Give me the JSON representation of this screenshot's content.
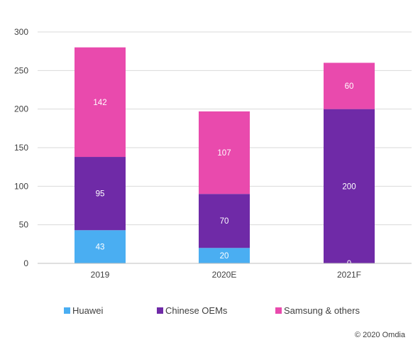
{
  "chart_data": {
    "type": "bar",
    "stacked": true,
    "categories": [
      "2019",
      "2020E",
      "2021F"
    ],
    "series": [
      {
        "name": "Huawei",
        "values": [
          43,
          20,
          0
        ],
        "color": "#4aaef2",
        "labels": [
          "43",
          "20",
          "0"
        ]
      },
      {
        "name": "Chinese OEMs",
        "values": [
          95,
          70,
          200
        ],
        "color": "#6f2aa7",
        "labels": [
          "95",
          "70",
          "200"
        ]
      },
      {
        "name": "Samsung & others",
        "values": [
          142,
          107,
          60
        ],
        "color": "#e94aad",
        "labels": [
          "142",
          "107",
          "60"
        ]
      }
    ],
    "yticks": [
      "0",
      "50",
      "100",
      "150",
      "200",
      "250",
      "300"
    ],
    "ylim": [
      0,
      300
    ],
    "grid": true,
    "legend_position": "bottom",
    "title": "",
    "xlabel": "",
    "ylabel": ""
  },
  "copyright": "© 2020 Omdia"
}
